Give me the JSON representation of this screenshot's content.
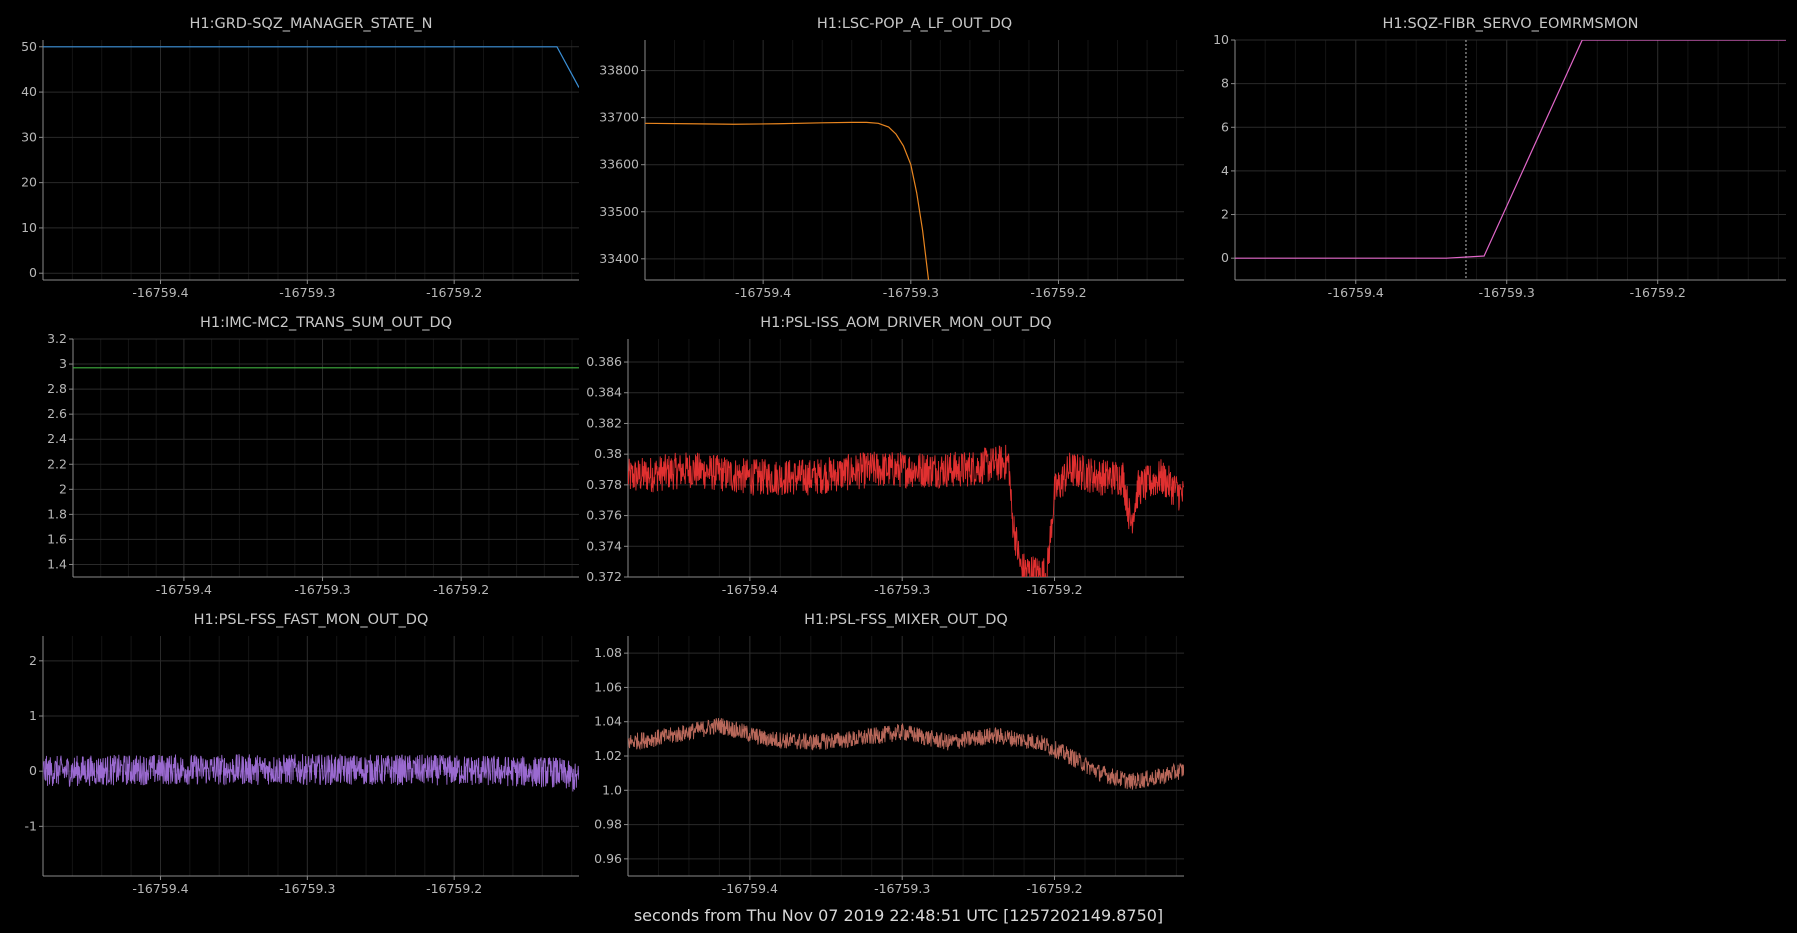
{
  "figure": {
    "x_caption": "seconds from Thu Nov 07 2019 22:48:51 UTC [1257202149.8750]",
    "background": "#000000",
    "grid_color": "#2a2a2a",
    "axis_color": "#8a8a8a"
  },
  "chart_data": [
    {
      "id": "p1",
      "type": "line",
      "title": "H1:GRD-SQZ_MANAGER_STATE_N",
      "color": "#3a8fd6",
      "xlim": [
        -16759.48,
        -16759.115
      ],
      "ylim": [
        -1.5,
        51.5
      ],
      "xticks": [
        -16759.4,
        -16759.3,
        -16759.2
      ],
      "xtick_labels": [
        "-16759.4",
        "-16759.3",
        "-16759.2"
      ],
      "yticks": [
        0,
        10,
        20,
        30,
        40,
        50
      ],
      "ytick_labels": [
        "0",
        "10",
        "20",
        "30",
        "40",
        "50"
      ],
      "x": [
        -16759.48,
        -16759.13,
        -16759.115
      ],
      "y": [
        50,
        50,
        41
      ]
    },
    {
      "id": "p2",
      "type": "line",
      "title": "H1:LSC-POP_A_LF_OUT_DQ",
      "color": "#e8851f",
      "xlim": [
        -16759.48,
        -16759.115
      ],
      "ylim": [
        33355,
        33865
      ],
      "xticks": [
        -16759.4,
        -16759.3,
        -16759.2
      ],
      "xtick_labels": [
        "-16759.4",
        "-16759.3",
        "-16759.2"
      ],
      "yticks": [
        33400,
        33500,
        33600,
        33700,
        33800
      ],
      "ytick_labels": [
        "33400",
        "33500",
        "33600",
        "33700",
        "33800"
      ],
      "x": [
        -16759.48,
        -16759.45,
        -16759.42,
        -16759.39,
        -16759.36,
        -16759.34,
        -16759.33,
        -16759.322,
        -16759.315,
        -16759.31,
        -16759.305,
        -16759.3,
        -16759.296,
        -16759.292,
        -16759.288
      ],
      "y": [
        33688,
        33687,
        33686,
        33687,
        33689,
        33690,
        33690,
        33688,
        33680,
        33665,
        33640,
        33600,
        33540,
        33460,
        33355
      ]
    },
    {
      "id": "p3",
      "type": "line",
      "title": "H1:SQZ-FIBR_SERVO_EOMRMSMON",
      "color": "#e066c8",
      "xlim": [
        -16759.48,
        -16759.115
      ],
      "ylim": [
        -1,
        10
      ],
      "xticks": [
        -16759.4,
        -16759.3,
        -16759.2
      ],
      "xtick_labels": [
        "-16759.4",
        "-16759.3",
        "-16759.2"
      ],
      "yticks": [
        0,
        2,
        4,
        6,
        8,
        10
      ],
      "ytick_labels": [
        "0",
        "2",
        "4",
        "6",
        "8",
        "10"
      ],
      "x": [
        -16759.48,
        -16759.34,
        -16759.315,
        -16759.25,
        -16759.115
      ],
      "y": [
        0,
        0,
        0.1,
        10,
        10
      ],
      "marker_x": -16759.327
    },
    {
      "id": "p4",
      "type": "line",
      "title": "H1:IMC-MC2_TRANS_SUM_OUT_DQ",
      "color": "#3fae3f",
      "xlim": [
        -16759.48,
        -16759.115
      ],
      "ylim": [
        1.3,
        3.2
      ],
      "xticks": [
        -16759.4,
        -16759.3,
        -16759.2
      ],
      "xtick_labels": [
        "-16759.4",
        "-16759.3",
        "-16759.2"
      ],
      "yticks": [
        1.4,
        1.6,
        1.8,
        2,
        2.2,
        2.4,
        2.6,
        2.8,
        3,
        3.2
      ],
      "ytick_labels": [
        "1.4",
        "1.6",
        "1.8",
        "2",
        "2.2",
        "2.4",
        "2.6",
        "2.8",
        "3",
        "3.2"
      ],
      "x": [
        -16759.48,
        -16759.115
      ],
      "y": [
        2.97,
        2.97
      ]
    },
    {
      "id": "p5",
      "type": "line",
      "title": "H1:PSL-ISS_AOM_DRIVER_MON_OUT_DQ",
      "color": "#e03030",
      "xlim": [
        -16759.48,
        -16759.115
      ],
      "ylim": [
        0.372,
        0.3875
      ],
      "xticks": [
        -16759.4,
        -16759.3,
        -16759.2
      ],
      "xtick_labels": [
        "-16759.4",
        "-16759.3",
        "-16759.2"
      ],
      "yticks": [
        0.372,
        0.374,
        0.376,
        0.378,
        0.38,
        0.382,
        0.384,
        0.386
      ],
      "ytick_labels": [
        "0.372",
        "0.374",
        "0.376",
        "0.378",
        "0.38",
        "0.382",
        "0.384",
        "0.386"
      ],
      "x": [
        -16759.48,
        -16759.44,
        -16759.4,
        -16759.36,
        -16759.32,
        -16759.26,
        -16759.23,
        -16759.228,
        -16759.222,
        -16759.21,
        -16759.205,
        -16759.2,
        -16759.19,
        -16759.17,
        -16759.155,
        -16759.15,
        -16759.145,
        -16759.13,
        -16759.115
      ],
      "y": [
        0.3785,
        0.379,
        0.3785,
        0.3785,
        0.379,
        0.379,
        0.3795,
        0.376,
        0.3725,
        0.3722,
        0.3722,
        0.3775,
        0.379,
        0.3785,
        0.3785,
        0.3755,
        0.3778,
        0.3785,
        0.3772
      ],
      "noise_amplitude": 0.0012
    },
    {
      "id": "p6",
      "type": "line",
      "title": "H1:PSL-FSS_FAST_MON_OUT_DQ",
      "color": "#9a6ad0",
      "xlim": [
        -16759.48,
        -16759.115
      ],
      "ylim": [
        -1.9,
        2.45
      ],
      "xticks": [
        -16759.4,
        -16759.3,
        -16759.2
      ],
      "xtick_labels": [
        "-16759.4",
        "-16759.3",
        "-16759.2"
      ],
      "yticks": [
        -1,
        0,
        1,
        2
      ],
      "ytick_labels": [
        "-1",
        "0",
        "1",
        "2"
      ],
      "x": [
        -16759.48,
        -16759.4,
        -16759.3,
        -16759.2,
        -16759.13,
        -16759.115
      ],
      "y": [
        0,
        0.03,
        0.03,
        0.02,
        -0.02,
        -0.15
      ],
      "noise_amplitude": 0.28
    },
    {
      "id": "p7",
      "type": "line",
      "title": "H1:PSL-FSS_MIXER_OUT_DQ",
      "color": "#b8685a",
      "xlim": [
        -16759.48,
        -16759.115
      ],
      "ylim": [
        0.95,
        1.09
      ],
      "xticks": [
        -16759.4,
        -16759.3,
        -16759.2
      ],
      "xtick_labels": [
        "-16759.4",
        "-16759.3",
        "-16759.2"
      ],
      "yticks": [
        0.96,
        0.98,
        1.0,
        1.02,
        1.04,
        1.06,
        1.08
      ],
      "ytick_labels": [
        "0.96",
        "0.98",
        "1.0",
        "1.02",
        "1.04",
        "1.06",
        "1.08"
      ],
      "x": [
        -16759.48,
        -16759.45,
        -16759.42,
        -16759.39,
        -16759.36,
        -16759.33,
        -16759.3,
        -16759.27,
        -16759.24,
        -16759.21,
        -16759.19,
        -16759.17,
        -16759.15,
        -16759.13,
        -16759.115
      ],
      "y": [
        1.028,
        1.032,
        1.038,
        1.03,
        1.028,
        1.03,
        1.034,
        1.028,
        1.032,
        1.028,
        1.02,
        1.01,
        1.005,
        1.008,
        1.012
      ],
      "noise_amplitude": 0.005
    }
  ]
}
